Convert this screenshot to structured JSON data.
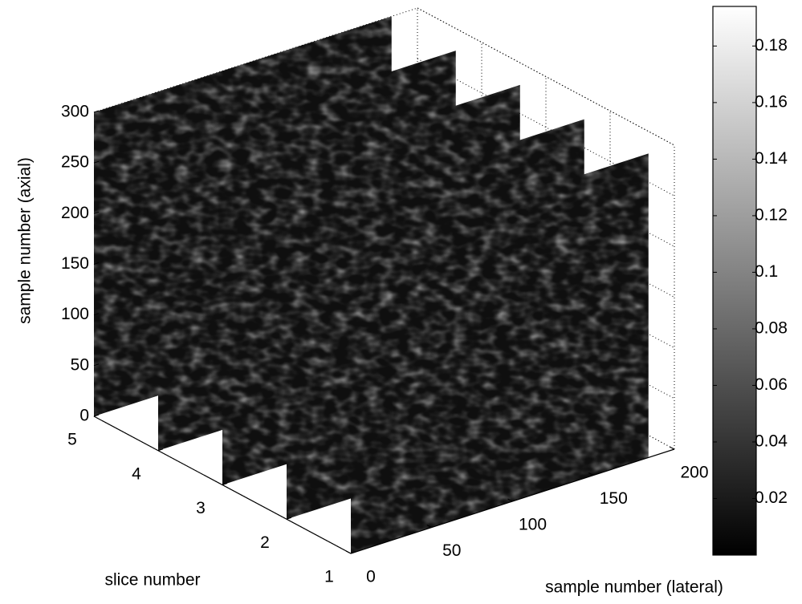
{
  "chart_data": {
    "type": "slice3d",
    "x_label": "sample number (lateral)",
    "y_label": "slice number",
    "z_label": "sample number (axial)",
    "xlim": [
      0,
      200
    ],
    "xticks": [
      0,
      50,
      100,
      150,
      200
    ],
    "ylim": [
      1,
      5
    ],
    "yticks": [
      1,
      2,
      3,
      4,
      5
    ],
    "zlim": [
      0,
      300
    ],
    "zticks": [
      0,
      50,
      100,
      150,
      200,
      250,
      300
    ],
    "slices": {
      "positions": [
        5,
        4,
        3,
        2,
        1
      ],
      "lateral_range": [
        0,
        184
      ],
      "axial_range": [
        0,
        300
      ]
    },
    "colormap": "gray",
    "clim": [
      0,
      0.194
    ],
    "cticks": [
      0.02,
      0.04,
      0.06,
      0.08,
      0.1,
      0.12,
      0.14,
      0.16,
      0.18
    ],
    "grid": true
  }
}
